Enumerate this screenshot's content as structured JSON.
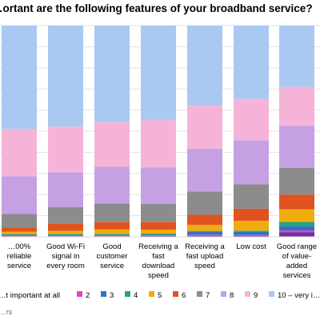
{
  "chart_data": {
    "type": "bar",
    "stacked": true,
    "normalized": true,
    "title": "…ortant are the following features of your broadband service?",
    "categories": [
      "…00% reliable service",
      "Good Wi-Fi signal in every room",
      "Good customer service",
      "Receiving a fast download speed",
      "Receiving a fast upload speed",
      "Low cost",
      "Good range of value-added services"
    ],
    "ylim": [
      0,
      100
    ],
    "grid": true,
    "legend_position": "bottom",
    "series": [
      {
        "name": "…t important at all",
        "color": "#7030a0",
        "values": [
          0.3,
          0.3,
          0.3,
          0.4,
          0.5,
          0.5,
          2.2
        ]
      },
      {
        "name": "2",
        "color": "#e83ec7",
        "values": [
          0.3,
          0.3,
          0.3,
          0.3,
          0.5,
          0.4,
          0.8
        ]
      },
      {
        "name": "3",
        "color": "#2e74c0",
        "values": [
          0.3,
          0.3,
          0.3,
          0.3,
          1.3,
          1.5,
          2.2
        ]
      },
      {
        "name": "4",
        "color": "#1ea57e",
        "values": [
          0.4,
          0.5,
          0.5,
          0.5,
          0.5,
          0.5,
          1.8
        ]
      },
      {
        "name": "5",
        "color": "#f0ac0c",
        "values": [
          1.1,
          1.4,
          2.1,
          1.9,
          2.8,
          4.7,
          6.0
        ]
      },
      {
        "name": "6",
        "color": "#e0531f",
        "values": [
          2.1,
          3.4,
          3.6,
          3.7,
          4.8,
          5.7,
          7.0
        ]
      },
      {
        "name": "7",
        "color": "#8c8c8c",
        "values": [
          6.3,
          7.8,
          8.6,
          8.5,
          11.1,
          11.5,
          12.7
        ]
      },
      {
        "name": "8",
        "color": "#c5a0e3",
        "values": [
          17.9,
          16.5,
          17.5,
          17.3,
          20.2,
          20.9,
          19.9
        ]
      },
      {
        "name": "9",
        "color": "#f6b3d8",
        "values": [
          22.4,
          21.7,
          21.2,
          22.6,
          20.4,
          19.6,
          18.4
        ]
      },
      {
        "name": "10 – very i…",
        "color": "#a9c9f2",
        "values": [
          48.9,
          47.8,
          45.6,
          44.5,
          37.9,
          34.7,
          29.0
        ]
      }
    ]
  },
  "footer": {
    "source": "…73"
  }
}
